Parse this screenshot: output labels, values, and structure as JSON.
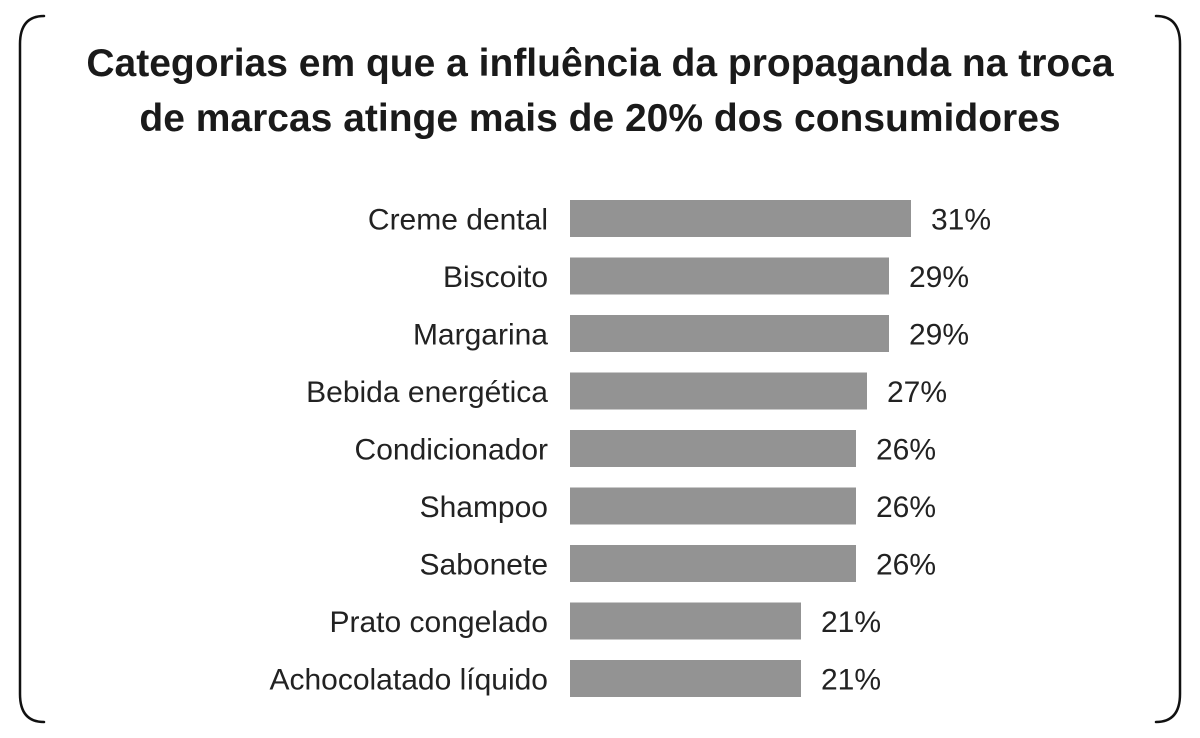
{
  "chart_data": {
    "type": "bar",
    "orientation": "horizontal",
    "title_lines": [
      "Categorias em que a influência da propaganda na troca",
      "de marcas atinge mais de 20% dos consumidores"
    ],
    "categories": [
      "Creme dental",
      "Biscoito",
      "Margarina",
      "Bebida energética",
      "Condicionador",
      "Shampoo",
      "Sabonete",
      "Prato congelado",
      "Achocolatado líquido"
    ],
    "values": [
      31,
      29,
      29,
      27,
      26,
      26,
      26,
      21,
      21
    ],
    "value_labels": [
      "31%",
      "29%",
      "29%",
      "27%",
      "26%",
      "26%",
      "26%",
      "21%",
      "21%"
    ],
    "unit": "%",
    "bar_color": "#939393",
    "grid": false,
    "legend": false
  }
}
